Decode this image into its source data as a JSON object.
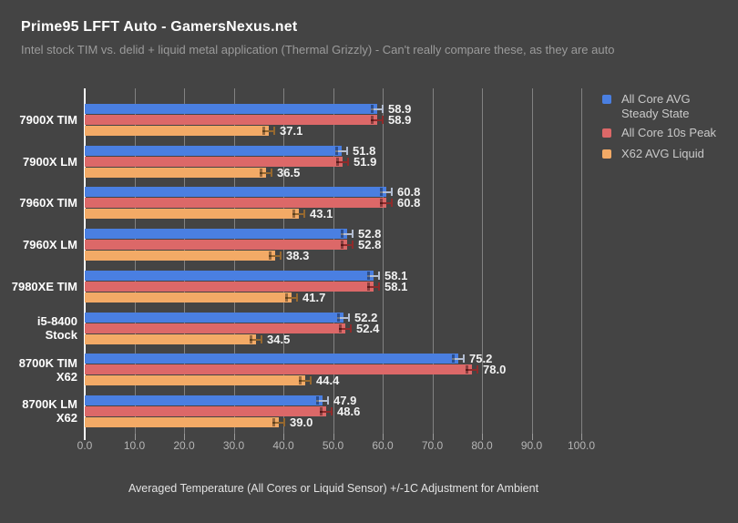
{
  "header": {
    "title": "Prime95 LFFT Auto - GamersNexus.net",
    "subtitle": "Intel stock TIM vs. delid + liquid metal application (Thermal Grizzly) - Can't really compare these, as they are auto"
  },
  "legend": {
    "position": "right",
    "items": [
      {
        "name": "All Core AVG Steady State",
        "lines": [
          "All Core AVG",
          "Steady State"
        ],
        "color": "#4a7fe1"
      },
      {
        "name": "All Core 10s Peak",
        "lines": [
          "All Core 10s Peak"
        ],
        "color": "#dc6868"
      },
      {
        "name": "X62 AVG Liquid",
        "lines": [
          "X62 AVG Liquid"
        ],
        "color": "#f3aa66"
      }
    ]
  },
  "chart_data": {
    "type": "bar",
    "orientation": "horizontal",
    "title": "Prime95 LFFT Auto - GamersNexus.net",
    "subtitle": "Intel stock TIM vs. delid + liquid metal application (Thermal Grizzly) - Can't really compare these, as they are auto",
    "categories": [
      "7900X TIM",
      "7900X LM",
      "7960X TIM",
      "7960X LM",
      "7980XE TIM",
      "i5-8400 Stock",
      "8700K TIM X62",
      "8700K LM X62"
    ],
    "category_lines": [
      [
        "7900X TIM"
      ],
      [
        "7900X LM"
      ],
      [
        "7960X TIM"
      ],
      [
        "7960X LM"
      ],
      [
        "7980XE TIM"
      ],
      [
        "i5-8400",
        "Stock"
      ],
      [
        "8700K TIM",
        "X62"
      ],
      [
        "8700K LM",
        "X62"
      ]
    ],
    "series": [
      {
        "name": "All Core AVG Steady State",
        "color": "#4a7fe1",
        "error_color": "#b3bdd1",
        "values": [
          58.9,
          51.8,
          60.8,
          52.8,
          58.1,
          52.2,
          75.2,
          47.9
        ]
      },
      {
        "name": "All Core 10s Peak",
        "color": "#dc6868",
        "error_color": "#8e2b2b",
        "values": [
          58.9,
          51.9,
          60.8,
          52.8,
          58.1,
          52.4,
          78.0,
          48.6
        ]
      },
      {
        "name": "X62 AVG Liquid",
        "color": "#f3aa66",
        "error_color": "#96682f",
        "values": [
          37.1,
          36.5,
          43.1,
          38.3,
          41.7,
          34.5,
          44.4,
          39.0
        ]
      }
    ],
    "error_bar_units": 1.3,
    "xlabel": "Averaged Temperature (All Cores or Liquid Sensor) +/-1C Adjustment for Ambient",
    "xlim": [
      0,
      100
    ],
    "xticks": [
      "0.0",
      "10.0",
      "20.0",
      "30.0",
      "40.0",
      "50.0",
      "60.0",
      "70.0",
      "80.0",
      "90.0",
      "100.0"
    ],
    "grid": true,
    "legend_position": "right",
    "colors": {
      "background": "#444444",
      "gridline": "#828282",
      "axis_line": "#ffffff",
      "value_label": "#f2f2f2",
      "tick_label": "#b5b5b5",
      "category_label": "#ffffff",
      "title": "#ffffff",
      "subtitle": "#9b9b9b"
    }
  }
}
